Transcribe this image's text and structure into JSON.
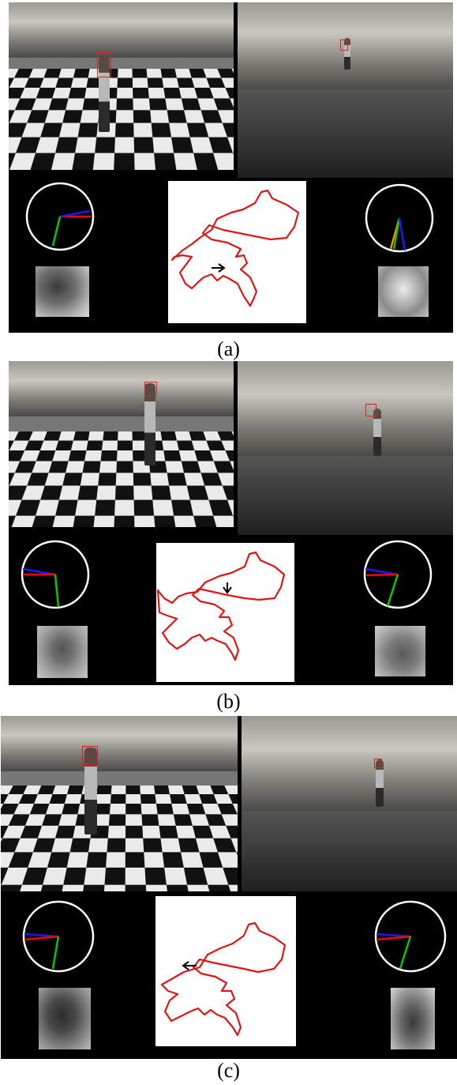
{
  "figure": {
    "panels": [
      {
        "caption": "(a)"
      },
      {
        "caption": "(b)"
      },
      {
        "caption": "(c)"
      }
    ],
    "colors": {
      "trajectory": "#e01515",
      "direction_arrow": "#000000",
      "angle_red": "#ff0000",
      "angle_blue": "#1a1aff",
      "angle_green": "#00cc00",
      "circle": "#ffffff"
    }
  }
}
